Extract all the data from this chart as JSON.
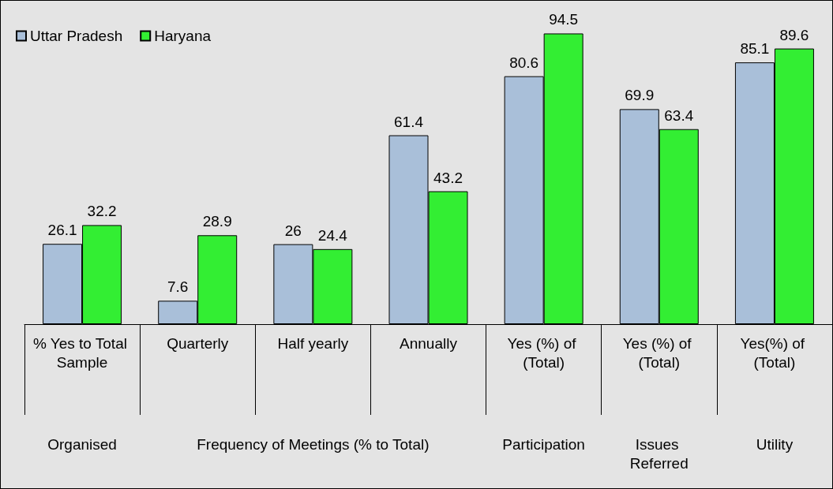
{
  "chart_data": {
    "type": "bar",
    "categories": [
      "% Yes to Total Sample",
      "Quarterly",
      "Half yearly",
      "Annually",
      "Yes (%) of (Total)",
      "Yes (%) of (Total)",
      "Yes(%) of (Total)"
    ],
    "series": [
      {
        "name": "Uttar Pradesh",
        "color": "#a9bfd9",
        "values": [
          26.1,
          7.6,
          26,
          61.4,
          80.6,
          69.9,
          85.1
        ]
      },
      {
        "name": "Haryana",
        "color": "#33ee33",
        "values": [
          32.2,
          28.9,
          24.4,
          43.2,
          94.5,
          63.4,
          89.6
        ]
      }
    ],
    "annotations": [
      "Organised",
      "Frequency of Meetings (% to Total)",
      "Participation",
      "Issues Referred",
      "Utility"
    ],
    "data_labels": true,
    "legend": "top left"
  }
}
